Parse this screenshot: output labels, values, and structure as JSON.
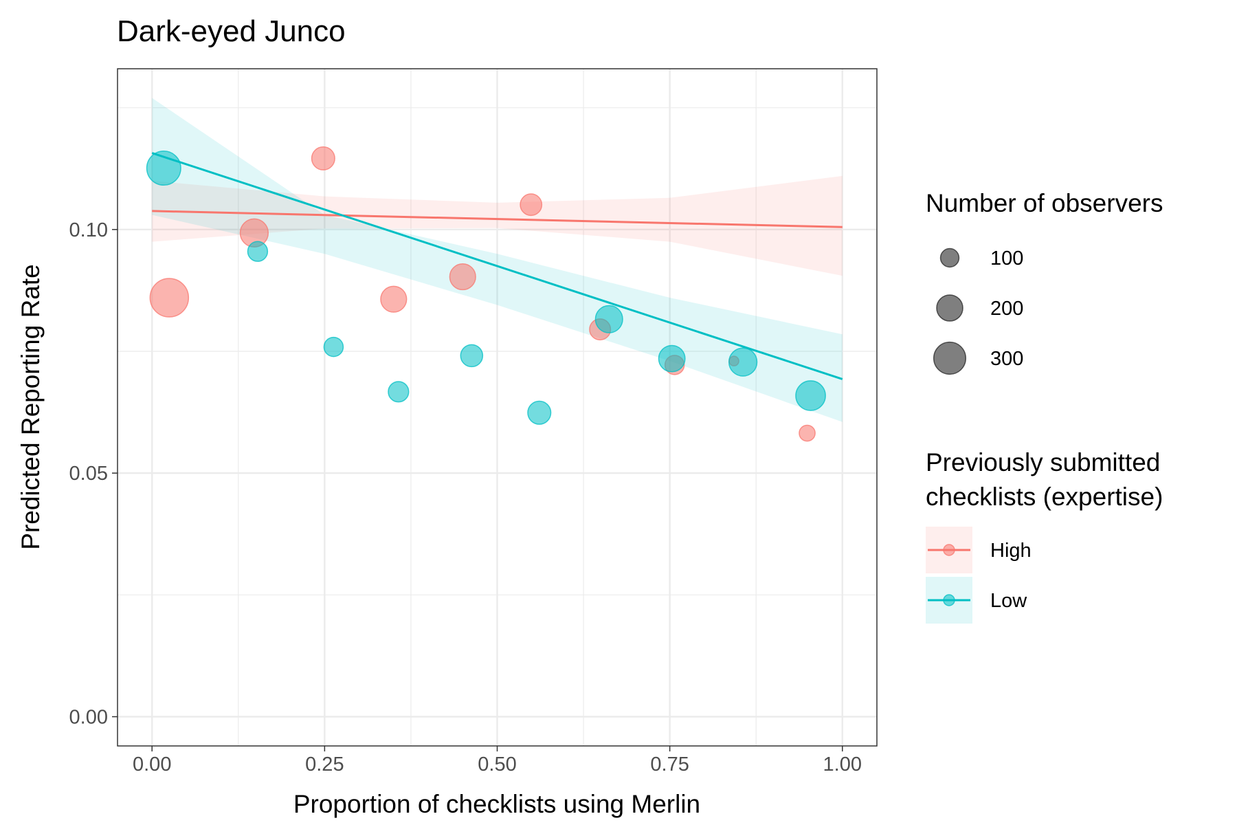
{
  "chart_data": {
    "type": "scatter",
    "title": "Dark-eyed Junco",
    "xlabel": "Proportion of checklists using Merlin",
    "ylabel": "Predicted Reporting Rate",
    "xlim": [
      -0.05,
      1.05
    ],
    "ylim": [
      -0.006,
      0.133
    ],
    "x_ticks": [
      "0.00",
      "0.25",
      "0.50",
      "0.75",
      "1.00"
    ],
    "x_tick_values": [
      0,
      0.25,
      0.5,
      0.75,
      1.0
    ],
    "y_ticks": [
      "0.00",
      "0.05",
      "0.10"
    ],
    "y_tick_values": [
      0,
      0.05,
      0.1
    ],
    "grid": true,
    "legend_position": "right",
    "size_legend": {
      "title": "Number of observers",
      "entries": [
        {
          "label": "100",
          "value": 100
        },
        {
          "label": "200",
          "value": 200
        },
        {
          "label": "300",
          "value": 300
        }
      ]
    },
    "color_legend": {
      "title_lines": [
        "Previously submitted",
        "checklists (expertise)"
      ],
      "entries": [
        {
          "label": "High",
          "color": "#F8766D"
        },
        {
          "label": "Low",
          "color": "#00BFC4"
        }
      ]
    },
    "series": [
      {
        "name": "High",
        "color": "#F8766D",
        "trend": {
          "x": [
            0,
            1
          ],
          "y": [
            0.1038,
            0.1005
          ]
        },
        "ci_lower": {
          "x": [
            0,
            0.25,
            0.5,
            0.75,
            1.0
          ],
          "y": [
            0.0975,
            0.1002,
            0.1003,
            0.0975,
            0.0905
          ]
        },
        "ci_upper": {
          "x": [
            0,
            0.25,
            0.5,
            0.75,
            1.0
          ],
          "y": [
            0.11,
            0.1068,
            0.1055,
            0.1065,
            0.111
          ]
        },
        "points": [
          {
            "x": 0.025,
            "y": 0.086,
            "n": 320
          },
          {
            "x": 0.148,
            "y": 0.0993,
            "n": 170
          },
          {
            "x": 0.248,
            "y": 0.1146,
            "n": 115
          },
          {
            "x": 0.35,
            "y": 0.0857,
            "n": 145
          },
          {
            "x": 0.45,
            "y": 0.0903,
            "n": 145
          },
          {
            "x": 0.549,
            "y": 0.1051,
            "n": 100
          },
          {
            "x": 0.649,
            "y": 0.0795,
            "n": 95
          },
          {
            "x": 0.757,
            "y": 0.0722,
            "n": 80
          },
          {
            "x": 0.843,
            "y": 0.073,
            "n": 20
          },
          {
            "x": 0.949,
            "y": 0.0582,
            "n": 55
          }
        ]
      },
      {
        "name": "Low",
        "color": "#00BFC4",
        "trend": {
          "x": [
            0,
            1
          ],
          "y": [
            0.1157,
            0.0693
          ]
        },
        "ci_lower": {
          "x": [
            0,
            0.25,
            0.5,
            0.75,
            1.0
          ],
          "y": [
            0.103,
            0.095,
            0.0845,
            0.073,
            0.0605
          ]
        },
        "ci_upper": {
          "x": [
            0,
            0.25,
            0.5,
            0.75,
            1.0
          ],
          "y": [
            0.127,
            0.103,
            0.095,
            0.086,
            0.0785
          ]
        },
        "points": [
          {
            "x": 0.017,
            "y": 0.1126,
            "n": 250
          },
          {
            "x": 0.153,
            "y": 0.0955,
            "n": 85
          },
          {
            "x": 0.263,
            "y": 0.0759,
            "n": 80
          },
          {
            "x": 0.357,
            "y": 0.0667,
            "n": 90
          },
          {
            "x": 0.463,
            "y": 0.0741,
            "n": 105
          },
          {
            "x": 0.561,
            "y": 0.0624,
            "n": 115
          },
          {
            "x": 0.662,
            "y": 0.0816,
            "n": 160
          },
          {
            "x": 0.753,
            "y": 0.0735,
            "n": 150
          },
          {
            "x": 0.856,
            "y": 0.0728,
            "n": 170
          },
          {
            "x": 0.954,
            "y": 0.0659,
            "n": 190
          }
        ]
      }
    ]
  }
}
